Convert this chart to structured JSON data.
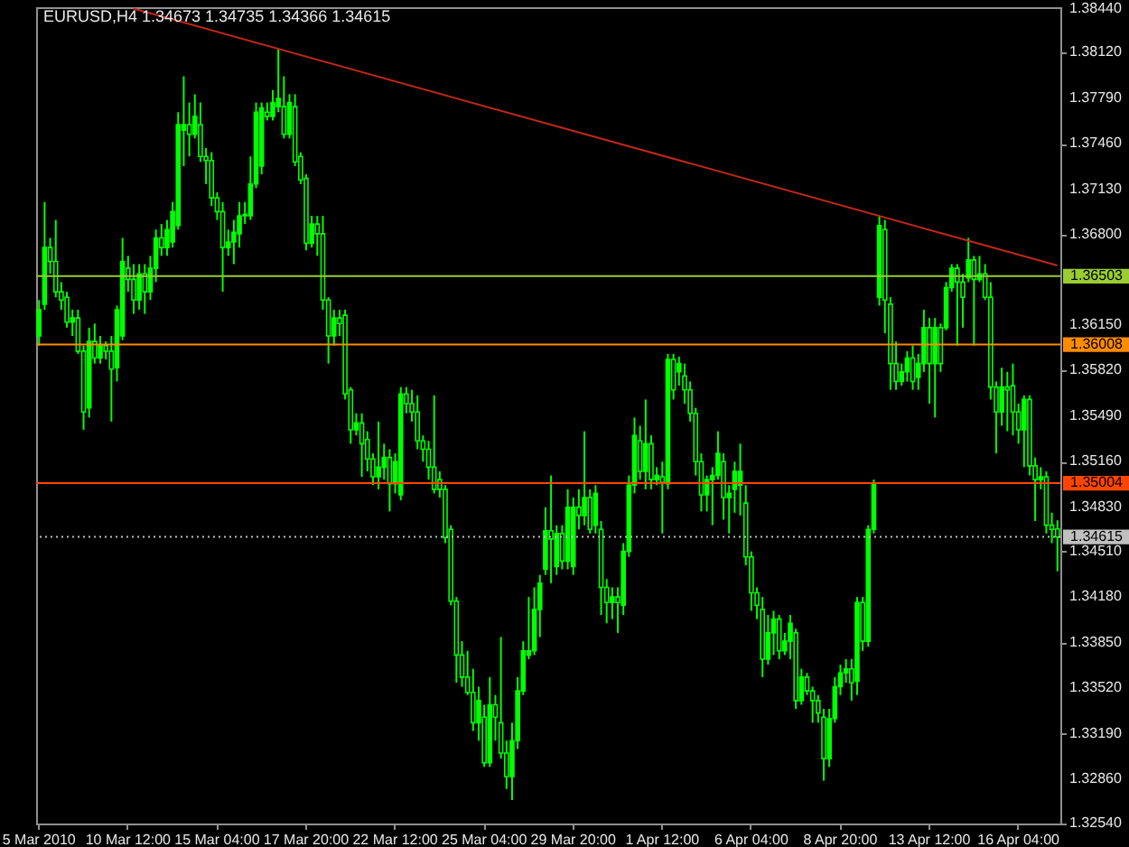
{
  "chart_data": {
    "type": "candlestick",
    "title": "EURUSD,H4  1.34673 1.34735 1.34366 1.34615",
    "color": "#00ff00",
    "categories": [
      "5 Mar 2010",
      null,
      null,
      null,
      null,
      null,
      null,
      null,
      null,
      null,
      null,
      null,
      null,
      null,
      null,
      null,
      "10 Mar 12:00",
      null,
      null,
      null,
      null,
      null,
      null,
      null,
      null,
      null,
      null,
      null,
      null,
      null,
      null,
      null,
      "15 Mar 04:00",
      null,
      null,
      null,
      null,
      null,
      null,
      null,
      null,
      null,
      null,
      null,
      null,
      null,
      null,
      null,
      "17 Mar 20:00",
      null,
      null,
      null,
      null,
      null,
      null,
      null,
      null,
      null,
      null,
      null,
      null,
      null,
      null,
      null,
      "22 Mar 12:00",
      null,
      null,
      null,
      null,
      null,
      null,
      null,
      null,
      null,
      null,
      null,
      null,
      null,
      null,
      null,
      "25 Mar 04:00",
      null,
      null,
      null,
      null,
      null,
      null,
      null,
      null,
      null,
      null,
      null,
      null,
      null,
      null,
      null,
      "29 Mar 20:00",
      null,
      null,
      null,
      null,
      null,
      null,
      null,
      null,
      null,
      null,
      null,
      null,
      null,
      null,
      null,
      "1 Apr 12:00",
      null,
      null,
      null,
      null,
      null,
      null,
      null,
      null,
      null,
      null,
      null,
      null,
      null,
      null,
      null,
      "6 Apr 04:00",
      null,
      null,
      null,
      null,
      null,
      null,
      null,
      null,
      null,
      null,
      null,
      null,
      null,
      null,
      null,
      "8 Apr 20:00",
      null,
      null,
      null,
      null,
      null,
      null,
      null,
      null,
      null,
      null,
      null,
      null,
      null,
      null,
      null,
      "13 Apr 12:00",
      null,
      null,
      null,
      null,
      null,
      null,
      null,
      null,
      null,
      null,
      null,
      null,
      null,
      null,
      null,
      "16 Apr 04:00",
      null,
      null,
      null,
      null,
      null,
      null,
      null
    ],
    "ohlc": [
      [
        1.3607,
        1.3633,
        1.36,
        1.3626
      ],
      [
        1.363,
        1.3704,
        1.3626,
        1.3671
      ],
      [
        1.3671,
        1.3678,
        1.3652,
        1.3661
      ],
      [
        1.3661,
        1.3691,
        1.3635,
        1.3639
      ],
      [
        1.3639,
        1.3646,
        1.3626,
        1.3633
      ],
      [
        1.3635,
        1.3639,
        1.3613,
        1.3617
      ],
      [
        1.3617,
        1.3626,
        1.3607,
        1.362
      ],
      [
        1.362,
        1.3626,
        1.3594,
        1.3596
      ],
      [
        1.3596,
        1.36,
        1.3539,
        1.3552
      ],
      [
        1.3555,
        1.3613,
        1.3548,
        1.3603
      ],
      [
        1.3603,
        1.3616,
        1.3587,
        1.3591
      ],
      [
        1.3591,
        1.3607,
        1.3587,
        1.36
      ],
      [
        1.36,
        1.3603,
        1.359,
        1.3596
      ],
      [
        1.3596,
        1.3607,
        1.3545,
        1.3583
      ],
      [
        1.3584,
        1.3629,
        1.3574,
        1.3626
      ],
      [
        1.3607,
        1.3678,
        1.3604,
        1.3661
      ],
      [
        1.3656,
        1.3665,
        1.3639,
        1.3648
      ],
      [
        1.3648,
        1.3659,
        1.3623,
        1.3633
      ],
      [
        1.3633,
        1.3659,
        1.3626,
        1.3652
      ],
      [
        1.3652,
        1.3659,
        1.3623,
        1.3639
      ],
      [
        1.3639,
        1.3665,
        1.3633,
        1.3656
      ],
      [
        1.3656,
        1.3684,
        1.3646,
        1.3678
      ],
      [
        1.3678,
        1.3688,
        1.3665,
        1.3671
      ],
      [
        1.3671,
        1.3691,
        1.3665,
        1.3684
      ],
      [
        1.3675,
        1.3704,
        1.3671,
        1.3697
      ],
      [
        1.3687,
        1.3769,
        1.3684,
        1.376
      ],
      [
        1.3756,
        1.3795,
        1.373,
        1.376
      ],
      [
        1.376,
        1.3776,
        1.3737,
        1.3753
      ],
      [
        1.3753,
        1.3782,
        1.375,
        1.3766
      ],
      [
        1.376,
        1.3776,
        1.3733,
        1.3737
      ],
      [
        1.3737,
        1.3743,
        1.3717,
        1.3734
      ],
      [
        1.3734,
        1.374,
        1.3701,
        1.3707
      ],
      [
        1.3707,
        1.3711,
        1.3691,
        1.3697
      ],
      [
        1.3697,
        1.3704,
        1.3639,
        1.3671
      ],
      [
        1.3671,
        1.3684,
        1.3665,
        1.3675
      ],
      [
        1.3675,
        1.3691,
        1.3659,
        1.3682
      ],
      [
        1.3681,
        1.3704,
        1.3671,
        1.3694
      ],
      [
        1.3694,
        1.3704,
        1.3688,
        1.3695
      ],
      [
        1.3694,
        1.3737,
        1.3691,
        1.3717
      ],
      [
        1.3717,
        1.3776,
        1.3714,
        1.3769
      ],
      [
        1.373,
        1.3776,
        1.3724,
        1.3772
      ],
      [
        1.3769,
        1.3776,
        1.3763,
        1.3766
      ],
      [
        1.3766,
        1.3785,
        1.3763,
        1.3776
      ],
      [
        1.3773,
        1.3815,
        1.3769,
        1.3779
      ],
      [
        1.3773,
        1.3795,
        1.375,
        1.3753
      ],
      [
        1.3753,
        1.3782,
        1.375,
        1.3776
      ],
      [
        1.3773,
        1.3782,
        1.373,
        1.3733
      ],
      [
        1.3737,
        1.374,
        1.3717,
        1.372
      ],
      [
        1.3721,
        1.3724,
        1.3669,
        1.3674
      ],
      [
        1.3674,
        1.3694,
        1.3671,
        1.3688
      ],
      [
        1.3688,
        1.3694,
        1.3665,
        1.3681
      ],
      [
        1.3681,
        1.3694,
        1.3626,
        1.3633
      ],
      [
        1.3633,
        1.3635,
        1.3587,
        1.3607
      ],
      [
        1.3607,
        1.3626,
        1.36,
        1.362
      ],
      [
        1.362,
        1.3626,
        1.3607,
        1.3616
      ],
      [
        1.3622,
        1.3626,
        1.3561,
        1.3565
      ],
      [
        1.3568,
        1.357,
        1.3529,
        1.3539
      ],
      [
        1.3539,
        1.3551,
        1.3535,
        1.3544
      ],
      [
        1.3544,
        1.3551,
        1.3505,
        1.3529
      ],
      [
        1.3532,
        1.3538,
        1.3509,
        1.3518
      ],
      [
        1.3518,
        1.3522,
        1.3499,
        1.3505
      ],
      [
        1.3505,
        1.3545,
        1.3496,
        1.3512
      ],
      [
        1.3512,
        1.3529,
        1.3503,
        1.3519
      ],
      [
        1.3519,
        1.3525,
        1.348,
        1.35
      ],
      [
        1.35,
        1.3522,
        1.3493,
        1.3516
      ],
      [
        1.3492,
        1.357,
        1.3488,
        1.3565
      ],
      [
        1.3565,
        1.357,
        1.3551,
        1.3558
      ],
      [
        1.3558,
        1.3568,
        1.3545,
        1.3552
      ],
      [
        1.3552,
        1.3564,
        1.3525,
        1.3531
      ],
      [
        1.3531,
        1.3535,
        1.3516,
        1.3525
      ],
      [
        1.3525,
        1.3531,
        1.3503,
        1.3512
      ],
      [
        1.3512,
        1.3564,
        1.3493,
        1.3496
      ],
      [
        1.3503,
        1.3509,
        1.349,
        1.3496
      ],
      [
        1.3496,
        1.3499,
        1.3457,
        1.3461
      ],
      [
        1.3467,
        1.347,
        1.3412,
        1.3415
      ],
      [
        1.3415,
        1.3418,
        1.3356,
        1.3376
      ],
      [
        1.3376,
        1.3386,
        1.3353,
        1.336
      ],
      [
        1.336,
        1.3379,
        1.3347,
        1.3349
      ],
      [
        1.3349,
        1.3366,
        1.3321,
        1.3327
      ],
      [
        1.3327,
        1.3353,
        1.3314,
        1.3343
      ],
      [
        1.3331,
        1.334,
        1.3295,
        1.3298
      ],
      [
        1.3298,
        1.336,
        1.3295,
        1.334
      ],
      [
        1.334,
        1.3347,
        1.3314,
        1.3331
      ],
      [
        1.3327,
        1.3389,
        1.3301,
        1.3305
      ],
      [
        1.3305,
        1.3314,
        1.3279,
        1.3288
      ],
      [
        1.3288,
        1.3327,
        1.3271,
        1.3314
      ],
      [
        1.3314,
        1.336,
        1.3308,
        1.335
      ],
      [
        1.335,
        1.3386,
        1.3347,
        1.3379
      ],
      [
        1.3376,
        1.3418,
        1.3373,
        1.3379
      ],
      [
        1.3379,
        1.3425,
        1.3376,
        1.3409
      ],
      [
        1.3409,
        1.3434,
        1.3389,
        1.3428
      ],
      [
        1.3438,
        1.3483,
        1.3434,
        1.3466
      ],
      [
        1.3466,
        1.3506,
        1.3428,
        1.346
      ],
      [
        1.344,
        1.347,
        1.3434,
        1.3464
      ],
      [
        1.3464,
        1.347,
        1.3438,
        1.3444
      ],
      [
        1.3444,
        1.3496,
        1.3438,
        1.3483
      ],
      [
        1.344,
        1.349,
        1.3434,
        1.3483
      ],
      [
        1.3483,
        1.3496,
        1.3467,
        1.3477
      ],
      [
        1.3477,
        1.3538,
        1.347,
        1.349
      ],
      [
        1.349,
        1.3496,
        1.3464,
        1.3467
      ],
      [
        1.347,
        1.3499,
        1.3464,
        1.3493
      ],
      [
        1.3467,
        1.3473,
        1.3405,
        1.3425
      ],
      [
        1.3425,
        1.3431,
        1.3399,
        1.3414
      ],
      [
        1.3414,
        1.3425,
        1.3402,
        1.3418
      ],
      [
        1.3418,
        1.3425,
        1.3392,
        1.3414
      ],
      [
        1.3412,
        1.3457,
        1.3405,
        1.3451
      ],
      [
        1.3451,
        1.3506,
        1.3447,
        1.3499
      ],
      [
        1.3499,
        1.3548,
        1.3493,
        1.3535
      ],
      [
        1.3531,
        1.3542,
        1.3503,
        1.3509
      ],
      [
        1.3509,
        1.3561,
        1.3496,
        1.3529
      ],
      [
        1.3529,
        1.3535,
        1.3496,
        1.3503
      ],
      [
        1.3503,
        1.3512,
        1.3499,
        1.3506
      ],
      [
        1.3505,
        1.3516,
        1.3464,
        1.3501
      ],
      [
        1.35,
        1.3594,
        1.3496,
        1.359
      ],
      [
        1.359,
        1.3594,
        1.3561,
        1.3568
      ],
      [
        1.3581,
        1.3592,
        1.3571,
        1.3587
      ],
      [
        1.3578,
        1.3587,
        1.3558,
        1.3568
      ],
      [
        1.3568,
        1.3574,
        1.3545,
        1.3551
      ],
      [
        1.3551,
        1.3555,
        1.3506,
        1.3516
      ],
      [
        1.3516,
        1.3522,
        1.348,
        1.3492
      ],
      [
        1.3492,
        1.3506,
        1.348,
        1.3503
      ],
      [
        1.3503,
        1.3512,
        1.347,
        1.3506
      ],
      [
        1.3506,
        1.3538,
        1.3503,
        1.3522
      ],
      [
        1.3516,
        1.3522,
        1.3474,
        1.349
      ],
      [
        1.349,
        1.3499,
        1.3464,
        1.3493
      ],
      [
        1.3496,
        1.3516,
        1.3479,
        1.3509
      ],
      [
        1.3499,
        1.3529,
        1.3477,
        1.3509
      ],
      [
        1.3486,
        1.3499,
        1.3441,
        1.3447
      ],
      [
        1.3447,
        1.3451,
        1.3408,
        1.3421
      ],
      [
        1.3421,
        1.3425,
        1.3402,
        1.3412
      ],
      [
        1.3409,
        1.3418,
        1.336,
        1.3373
      ],
      [
        1.3373,
        1.3405,
        1.3369,
        1.3392
      ],
      [
        1.3392,
        1.3408,
        1.3376,
        1.3402
      ],
      [
        1.3402,
        1.3405,
        1.3373,
        1.3379
      ],
      [
        1.3379,
        1.3392,
        1.3376,
        1.3386
      ],
      [
        1.3386,
        1.3405,
        1.3373,
        1.3399
      ],
      [
        1.3392,
        1.3395,
        1.3337,
        1.3343
      ],
      [
        1.3343,
        1.3366,
        1.334,
        1.336
      ],
      [
        1.336,
        1.3363,
        1.3347,
        1.335
      ],
      [
        1.335,
        1.3353,
        1.3327,
        1.3343
      ],
      [
        1.3343,
        1.3347,
        1.3327,
        1.3334
      ],
      [
        1.3331,
        1.3337,
        1.3285,
        1.3301
      ],
      [
        1.3301,
        1.3337,
        1.3295,
        1.333
      ],
      [
        1.333,
        1.336,
        1.3327,
        1.3353
      ],
      [
        1.3353,
        1.3369,
        1.3347,
        1.3363
      ],
      [
        1.3363,
        1.3373,
        1.3356,
        1.3366
      ],
      [
        1.3366,
        1.3373,
        1.3343,
        1.3356
      ],
      [
        1.3357,
        1.3418,
        1.3347,
        1.3414
      ],
      [
        1.3414,
        1.3418,
        1.3379,
        1.3386
      ],
      [
        1.3386,
        1.347,
        1.3382,
        1.3467
      ],
      [
        1.3467,
        1.3503,
        1.3464,
        1.35
      ],
      [
        1.3635,
        1.3694,
        1.3629,
        1.3687
      ],
      [
        1.3684,
        1.3691,
        1.3609,
        1.3633
      ],
      [
        1.363,
        1.3635,
        1.3568,
        1.3587
      ],
      [
        1.3587,
        1.3603,
        1.3568,
        1.3574
      ],
      [
        1.3574,
        1.3587,
        1.3571,
        1.3581
      ],
      [
        1.3581,
        1.3596,
        1.3574,
        1.3591
      ],
      [
        1.3591,
        1.36,
        1.3568,
        1.3574
      ],
      [
        1.3577,
        1.3594,
        1.3568,
        1.3587
      ],
      [
        1.3587,
        1.3626,
        1.3581,
        1.3613
      ],
      [
        1.3613,
        1.362,
        1.3558,
        1.3587
      ],
      [
        1.3587,
        1.362,
        1.3548,
        1.3613
      ],
      [
        1.3613,
        1.3616,
        1.3581,
        1.3587
      ],
      [
        1.3613,
        1.3646,
        1.3611,
        1.3642
      ],
      [
        1.3642,
        1.3659,
        1.3639,
        1.3656
      ],
      [
        1.3656,
        1.3659,
        1.36,
        1.3646
      ],
      [
        1.3646,
        1.3652,
        1.3613,
        1.3635
      ],
      [
        1.3649,
        1.3678,
        1.3646,
        1.3662
      ],
      [
        1.3662,
        1.3665,
        1.36,
        1.3648
      ],
      [
        1.3648,
        1.3665,
        1.3646,
        1.3652
      ],
      [
        1.3652,
        1.3659,
        1.3633,
        1.3635
      ],
      [
        1.3635,
        1.3646,
        1.3561,
        1.357
      ],
      [
        1.357,
        1.3574,
        1.3522,
        1.3552
      ],
      [
        1.3552,
        1.3584,
        1.3542,
        1.357
      ],
      [
        1.357,
        1.3581,
        1.3538,
        1.3568
      ],
      [
        1.3571,
        1.3587,
        1.3535,
        1.3552
      ],
      [
        1.3552,
        1.3558,
        1.3529,
        1.3539
      ],
      [
        1.3539,
        1.3564,
        1.3512,
        1.3561
      ],
      [
        1.3561,
        1.3564,
        1.3506,
        1.3513
      ],
      [
        1.3513,
        1.3519,
        1.3473,
        1.3503
      ],
      [
        1.3503,
        1.3512,
        1.3496,
        1.3505
      ],
      [
        1.3505,
        1.3509,
        1.3464,
        1.347
      ],
      [
        1.347,
        1.3479,
        1.3457,
        1.3467
      ],
      [
        1.34673,
        1.34735,
        1.34366,
        1.34615
      ]
    ],
    "series": [
      {
        "type": "line",
        "color": "#c0281a",
        "values": [
          null,
          null,
          null,
          null,
          null,
          null,
          null,
          null,
          null,
          null,
          null,
          null,
          null,
          null,
          null,
          null,
          null,
          1.3844,
          null,
          null,
          null,
          null,
          null,
          null,
          null,
          null,
          null,
          null,
          null,
          null,
          null,
          null,
          null,
          null,
          null,
          null,
          null,
          null,
          null,
          null,
          null,
          null,
          null,
          null,
          null,
          null,
          null,
          null,
          null,
          null,
          null,
          null,
          null,
          null,
          null,
          null,
          null,
          null,
          null,
          null,
          null,
          null,
          null,
          null,
          null,
          null,
          null,
          null,
          null,
          null,
          null,
          null,
          null,
          null,
          null,
          null,
          null,
          null,
          null,
          null,
          null,
          null,
          null,
          null,
          null,
          null,
          null,
          null,
          null,
          null,
          null,
          null,
          null,
          null,
          null,
          null,
          null,
          null,
          null,
          null,
          null,
          null,
          null,
          null,
          null,
          null,
          null,
          null,
          null,
          null,
          null,
          null,
          null,
          null,
          null,
          null,
          null,
          null,
          null,
          null,
          null,
          null,
          null,
          null,
          null,
          null,
          null,
          null,
          null,
          null,
          null,
          null,
          null,
          null,
          null,
          null,
          null,
          null,
          null,
          null,
          null,
          null,
          null,
          null,
          null,
          null,
          null,
          null,
          null,
          null,
          null,
          null,
          null,
          null,
          null,
          null,
          null,
          null,
          null,
          null,
          null,
          null,
          null,
          null,
          null,
          null,
          null,
          null,
          null,
          null,
          null,
          null,
          null,
          null,
          null,
          null,
          null,
          null,
          null,
          null,
          null,
          null,
          null,
          1.3658
        ]
      }
    ],
    "ylim": [
      1.3254,
      1.3845
    ],
    "yticks": [
      {
        "value": 1.3844,
        "label": "1.38440"
      },
      {
        "value": 1.3812,
        "label": "1.38120"
      },
      {
        "value": 1.3779,
        "label": "1.37790"
      },
      {
        "value": 1.3746,
        "label": "1.37460"
      },
      {
        "value": 1.3713,
        "label": "1.37130"
      },
      {
        "value": 1.368,
        "label": "1.36800"
      },
      {
        "value": 1.3615,
        "label": "1.36150"
      },
      {
        "value": 1.3582,
        "label": "1.35820"
      },
      {
        "value": 1.3549,
        "label": "1.35490"
      },
      {
        "value": 1.3516,
        "label": "1.35160"
      },
      {
        "value": 1.3483,
        "label": "1.34830"
      },
      {
        "value": 1.3451,
        "label": "1.34510"
      },
      {
        "value": 1.3418,
        "label": "1.34180"
      },
      {
        "value": 1.3385,
        "label": "1.33850"
      },
      {
        "value": 1.3352,
        "label": "1.33520"
      },
      {
        "value": 1.3319,
        "label": "1.33190"
      },
      {
        "value": 1.3286,
        "label": "1.32860"
      },
      {
        "value": 1.3254,
        "label": "1.32540"
      }
    ],
    "ref_lines": [
      {
        "axis": "y",
        "value": 1.36503,
        "label": "1.36503",
        "color": "#9acd32",
        "line_style": "solid"
      },
      {
        "axis": "y",
        "value": 1.36008,
        "label": "1.36008",
        "color": "#ff8c00",
        "line_style": "solid"
      },
      {
        "axis": "y",
        "value": 1.35004,
        "label": "1.35004",
        "color": "#ff4500",
        "line_style": "solid"
      },
      {
        "axis": "y",
        "value": 1.34615,
        "label": "1.34615",
        "color": "#c0c0c0",
        "line_style": "dotted"
      }
    ]
  }
}
